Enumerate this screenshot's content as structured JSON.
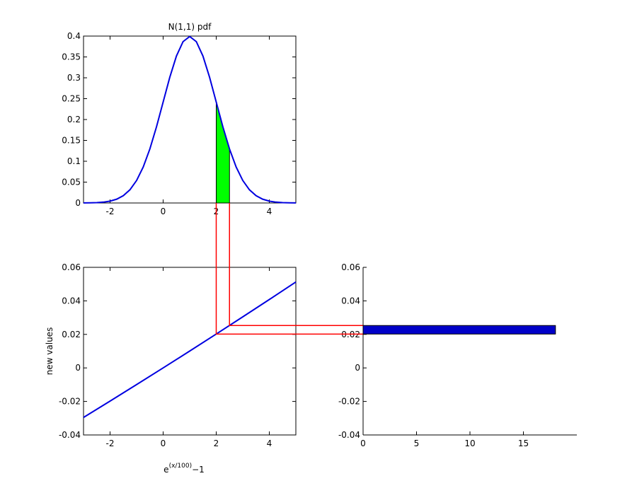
{
  "chart_data": [
    {
      "type": "line",
      "title": "N(1,1) pdf",
      "box": true,
      "color": "#0000e0",
      "x": [
        -3,
        -2.75,
        -2.5,
        -2.25,
        -2,
        -1.75,
        -1.5,
        -1.25,
        -1,
        -0.75,
        -0.5,
        -0.25,
        0,
        0.25,
        0.5,
        0.75,
        1,
        1.25,
        1.5,
        1.75,
        2,
        2.25,
        2.5,
        2.75,
        3,
        3.25,
        3.5,
        3.75,
        4,
        4.25,
        4.5,
        4.75,
        5
      ],
      "values": [
        0.000134,
        0.000353,
        0.000873,
        0.002029,
        0.004432,
        0.009094,
        0.017528,
        0.03174,
        0.053991,
        0.086277,
        0.129518,
        0.182649,
        0.241971,
        0.301137,
        0.352065,
        0.386668,
        0.398942,
        0.386668,
        0.352065,
        0.301137,
        0.241971,
        0.182649,
        0.129518,
        0.086277,
        0.053991,
        0.03174,
        0.017528,
        0.009094,
        0.004432,
        0.002029,
        0.000873,
        0.000353,
        0.000134
      ],
      "fill_between": [
        2,
        2.5
      ],
      "fill_color": "#00ff00",
      "xlim": [
        -3,
        5
      ],
      "xticks": [
        -2,
        0,
        2,
        4
      ],
      "ylim": [
        0,
        0.4
      ],
      "yticks": [
        0,
        0.05,
        0.1,
        0.15,
        0.2,
        0.25,
        0.3,
        0.35,
        0.4
      ]
    },
    {
      "type": "line",
      "box": true,
      "color": "#0000e0",
      "ylabel": "new values",
      "xlabel": {
        "base": "e",
        "sup": "(x/100)",
        "tail": "−1"
      },
      "x": [
        -3,
        -2,
        -1,
        0,
        1,
        2,
        3,
        4,
        5
      ],
      "values": [
        -0.029554,
        -0.019801,
        -0.00995,
        0,
        0.01005,
        0.020201,
        0.030455,
        0.040811,
        0.051271
      ],
      "xlim": [
        -3,
        5
      ],
      "xticks": [
        -2,
        0,
        2,
        4
      ],
      "ylim": [
        -0.04,
        0.06
      ],
      "yticks": [
        -0.04,
        -0.02,
        0,
        0.02,
        0.04,
        0.06
      ]
    },
    {
      "type": "histogram",
      "orientation": "horizontal",
      "box": false,
      "color": "#0000c8",
      "connector_color": "#ff0000",
      "bins": [
        0.0202,
        0.0253
      ],
      "values": [
        18
      ],
      "xlim": [
        0,
        20
      ],
      "xticks": [
        0,
        5,
        10,
        15
      ],
      "ylim": [
        -0.04,
        0.06
      ],
      "yticks": [
        -0.04,
        -0.02,
        0,
        0.02,
        0.04,
        0.06
      ]
    }
  ]
}
